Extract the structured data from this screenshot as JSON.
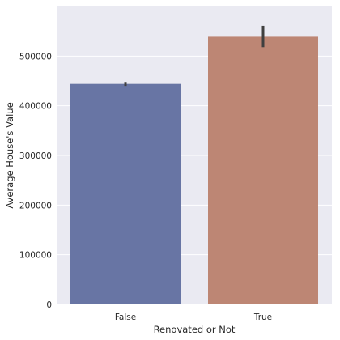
{
  "chart_data": {
    "type": "bar",
    "title": "",
    "xlabel": "Renovated or Not",
    "ylabel": "Average House's Value",
    "categories": [
      "False",
      "True"
    ],
    "values": [
      444000,
      539000
    ],
    "error_bars": [
      [
        440000,
        448000
      ],
      [
        518000,
        561000
      ]
    ],
    "ylim": [
      0,
      600000
    ],
    "yticks": [
      0,
      100000,
      200000,
      300000,
      400000,
      500000
    ],
    "ytick_labels": [
      "0",
      "100000",
      "200000",
      "300000",
      "400000",
      "500000"
    ],
    "grid": true,
    "colors": {
      "background": "#eaeaf2",
      "grid": "#ffffff",
      "bars": [
        "#6875a4",
        "#bd8674"
      ],
      "errorbar": "#3f3f3f"
    }
  }
}
